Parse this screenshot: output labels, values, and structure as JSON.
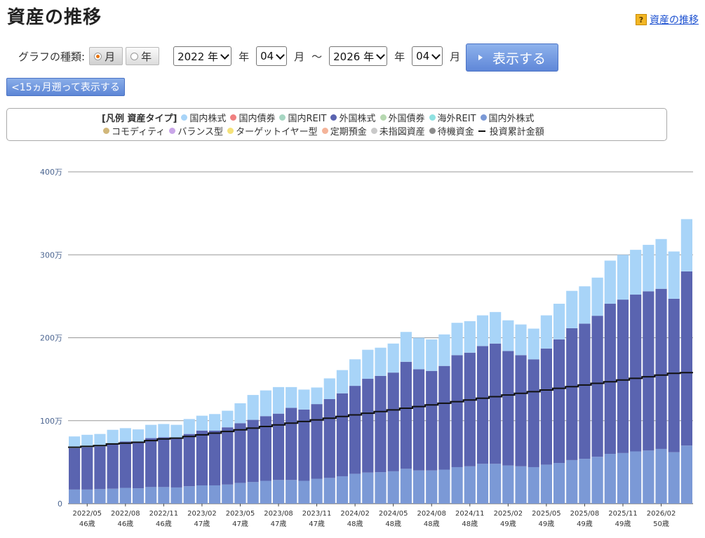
{
  "title": "資産の推移",
  "help_link": "資産の推移",
  "controls": {
    "graph_type_label": "グラフの種類:",
    "radio_month": "月",
    "radio_year": "年",
    "start_year": "2022 年",
    "start_month": "04",
    "end_year": "2026 年",
    "end_month": "04",
    "unit_year": "年",
    "unit_month": "月",
    "tilde": "～",
    "show_button": "表示する",
    "back_button": "<15ヵ月遡って表示する"
  },
  "legend": {
    "title": "[凡例 資産タイプ]",
    "items": [
      {
        "label": "国内株式",
        "color": "#a8d4f8"
      },
      {
        "label": "国内債券",
        "color": "#f08080"
      },
      {
        "label": "国内REIT",
        "color": "#a6d6c2"
      },
      {
        "label": "外国株式",
        "color": "#5a64b0"
      },
      {
        "label": "外国債券",
        "color": "#b6d8b0"
      },
      {
        "label": "海外REIT",
        "color": "#8fe2e2"
      },
      {
        "label": "国内外株式",
        "color": "#7b99d6"
      },
      {
        "label": "コモディティ",
        "color": "#d1b77a"
      },
      {
        "label": "バランス型",
        "color": "#c9a6e8"
      },
      {
        "label": "ターゲットイヤー型",
        "color": "#f5e27a"
      },
      {
        "label": "定期預金",
        "color": "#f4b49a"
      },
      {
        "label": "未指図資産",
        "color": "#c9c9c9"
      },
      {
        "label": "待機資金",
        "color": "#8c8c8c"
      }
    ],
    "line_label": "投資累計金額"
  },
  "chart_data": {
    "type": "bar",
    "stacked": true,
    "ylim": [
      0,
      4000000
    ],
    "y_ticks": [
      0,
      1000000,
      2000000,
      3000000,
      4000000
    ],
    "y_tick_labels": [
      "0",
      "100万",
      "200万",
      "300万",
      "400万"
    ],
    "grid": true,
    "x_tick_labels": [
      {
        "index": 1,
        "date": "2022/05",
        "age": "46歳"
      },
      {
        "index": 4,
        "date": "2022/08",
        "age": "46歳"
      },
      {
        "index": 7,
        "date": "2022/11",
        "age": "46歳"
      },
      {
        "index": 10,
        "date": "2023/02",
        "age": "47歳"
      },
      {
        "index": 13,
        "date": "2023/05",
        "age": "47歳"
      },
      {
        "index": 16,
        "date": "2023/08",
        "age": "47歳"
      },
      {
        "index": 19,
        "date": "2023/11",
        "age": "47歳"
      },
      {
        "index": 22,
        "date": "2024/02",
        "age": "48歳"
      },
      {
        "index": 25,
        "date": "2024/05",
        "age": "48歳"
      },
      {
        "index": 28,
        "date": "2024/08",
        "age": "48歳"
      },
      {
        "index": 31,
        "date": "2024/11",
        "age": "48歳"
      },
      {
        "index": 34,
        "date": "2025/02",
        "age": "49歳"
      },
      {
        "index": 37,
        "date": "2025/05",
        "age": "49歳"
      },
      {
        "index": 40,
        "date": "2025/08",
        "age": "49歳"
      },
      {
        "index": 43,
        "date": "2025/11",
        "age": "49歳"
      },
      {
        "index": 46,
        "date": "2026/02",
        "age": "50歳"
      }
    ],
    "series": [
      {
        "name": "国内外株式",
        "color": "#7b99d6",
        "values": [
          170000,
          170000,
          175000,
          180000,
          190000,
          185000,
          200000,
          200000,
          195000,
          210000,
          220000,
          220000,
          230000,
          250000,
          260000,
          275000,
          285000,
          285000,
          275000,
          300000,
          310000,
          330000,
          360000,
          375000,
          380000,
          390000,
          420000,
          400000,
          400000,
          410000,
          440000,
          450000,
          480000,
          480000,
          460000,
          450000,
          440000,
          470000,
          490000,
          525000,
          540000,
          565000,
          600000,
          610000,
          630000,
          640000,
          660000,
          620000,
          700000
        ]
      },
      {
        "name": "外国株式",
        "color": "#5a64b0",
        "values": [
          500000,
          510000,
          515000,
          540000,
          560000,
          550000,
          590000,
          600000,
          595000,
          630000,
          660000,
          660000,
          690000,
          720000,
          750000,
          780000,
          800000,
          870000,
          860000,
          900000,
          950000,
          1000000,
          1060000,
          1130000,
          1160000,
          1190000,
          1290000,
          1220000,
          1200000,
          1250000,
          1350000,
          1370000,
          1420000,
          1450000,
          1380000,
          1340000,
          1300000,
          1400000,
          1490000,
          1590000,
          1630000,
          1700000,
          1810000,
          1850000,
          1890000,
          1920000,
          1930000,
          1850000,
          2100000
        ]
      },
      {
        "name": "国内株式",
        "color": "#a8d4f8",
        "values": [
          140000,
          150000,
          150000,
          170000,
          160000,
          160000,
          160000,
          160000,
          160000,
          180000,
          180000,
          200000,
          200000,
          240000,
          300000,
          310000,
          320000,
          250000,
          240000,
          200000,
          250000,
          280000,
          320000,
          350000,
          340000,
          350000,
          360000,
          380000,
          380000,
          380000,
          390000,
          380000,
          370000,
          380000,
          370000,
          370000,
          370000,
          400000,
          430000,
          450000,
          450000,
          460000,
          520000,
          540000,
          540000,
          560000,
          600000,
          570000,
          630000
        ]
      }
    ],
    "line_series": {
      "name": "投資累計金額",
      "color": "#111111",
      "values": [
        680000,
        690000,
        700000,
        720000,
        730000,
        740000,
        760000,
        780000,
        790000,
        810000,
        830000,
        850000,
        870000,
        890000,
        910000,
        930000,
        950000,
        970000,
        990000,
        1010000,
        1030000,
        1050000,
        1070000,
        1090000,
        1110000,
        1130000,
        1150000,
        1170000,
        1190000,
        1210000,
        1230000,
        1250000,
        1270000,
        1290000,
        1310000,
        1330000,
        1350000,
        1370000,
        1390000,
        1410000,
        1430000,
        1450000,
        1470000,
        1490000,
        1510000,
        1530000,
        1550000,
        1570000,
        1580000
      ]
    }
  }
}
